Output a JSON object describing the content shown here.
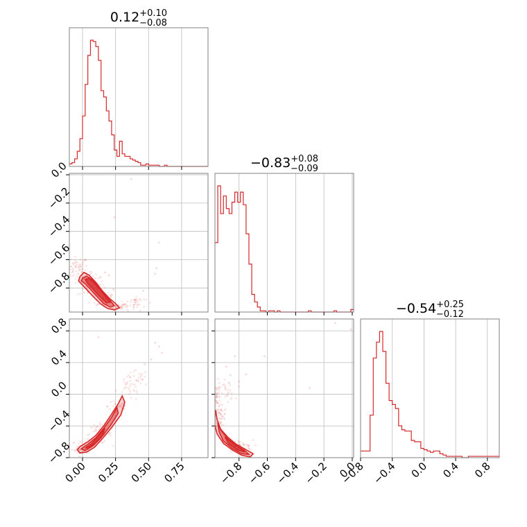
{
  "figure": {
    "title_values": [
      {
        "main": "0.12",
        "sup": "+0.10",
        "sub": "−0.08"
      },
      {
        "main": "−0.83",
        "sup": "+0.08",
        "sub": "−0.09"
      },
      {
        "main": "−0.54",
        "sup": "+0.25",
        "sub": "−0.12"
      }
    ],
    "color": "#d62728",
    "frame_color": "#808080",
    "grid": true
  },
  "chart_data": {
    "type": "corner",
    "parameters": [
      {
        "index": 0,
        "range": [
          -0.1,
          0.95
        ],
        "ticks": [
          "0.00",
          "0.25",
          "0.50",
          "0.75"
        ],
        "tick_values": [
          0.0,
          0.25,
          0.5,
          0.75
        ],
        "median": 0.12,
        "plus": 0.1,
        "minus": 0.08,
        "histogram": {
          "bin_edges": [
            -0.1,
            -0.08,
            -0.06,
            -0.04,
            -0.02,
            0.0,
            0.02,
            0.04,
            0.06,
            0.08,
            0.1,
            0.12,
            0.14,
            0.16,
            0.18,
            0.2,
            0.22,
            0.24,
            0.26,
            0.28,
            0.3,
            0.32,
            0.34,
            0.36,
            0.38,
            0.4,
            0.42,
            0.44,
            0.46,
            0.48,
            0.5,
            0.52,
            0.54,
            0.56,
            0.58,
            0.6,
            0.62,
            0.64,
            0.66,
            0.68,
            0.7,
            0.72,
            0.74,
            0.76,
            0.78,
            0.8,
            0.82,
            0.84,
            0.86,
            0.88,
            0.9,
            0.92,
            0.94,
            0.95
          ],
          "counts": [
            2,
            3,
            6,
            12,
            22,
            40,
            65,
            88,
            100,
            99,
            95,
            84,
            60,
            55,
            44,
            36,
            25,
            13,
            8,
            20,
            10,
            8,
            8,
            6,
            5,
            4,
            3,
            1,
            1,
            2,
            1,
            1,
            1,
            1,
            0,
            0,
            1,
            0,
            0,
            0,
            0,
            0,
            0,
            0,
            0,
            0,
            0,
            0,
            0,
            0,
            0,
            0,
            0
          ]
        }
      },
      {
        "index": 1,
        "range": [
          -0.97,
          0.01
        ],
        "ticks": [
          "−0.8",
          "−0.6",
          "−0.4",
          "−0.2",
          "0.0"
        ],
        "tick_values": [
          -0.8,
          -0.6,
          -0.4,
          -0.2,
          0.0
        ],
        "median": -0.83,
        "plus": 0.08,
        "minus": 0.09,
        "histogram": {
          "bin_edges": [
            -0.97,
            -0.95,
            -0.93,
            -0.91,
            -0.89,
            -0.87,
            -0.85,
            -0.83,
            -0.81,
            -0.79,
            -0.77,
            -0.75,
            -0.73,
            -0.71,
            -0.69,
            -0.67,
            -0.65,
            -0.63,
            -0.61,
            -0.59,
            -0.57,
            -0.55,
            -0.53,
            -0.51,
            -0.49,
            -0.47,
            -0.45,
            -0.43,
            -0.41,
            -0.39,
            -0.37,
            -0.35,
            -0.33,
            -0.31,
            -0.29,
            -0.27,
            -0.25,
            -0.23,
            -0.21,
            -0.19,
            -0.17,
            -0.15,
            -0.13,
            -0.11,
            -0.09,
            -0.07,
            -0.05,
            -0.03,
            -0.01,
            0.01
          ],
          "counts": [
            55,
            100,
            78,
            92,
            82,
            78,
            87,
            95,
            87,
            95,
            85,
            62,
            38,
            14,
            8,
            4,
            1,
            1,
            0,
            1,
            1,
            0,
            1,
            0,
            0,
            0,
            0,
            0,
            0,
            0,
            0,
            0,
            0,
            1,
            0,
            0,
            0,
            0,
            0,
            0,
            0,
            0,
            1,
            0,
            0,
            0,
            0,
            0,
            2
          ]
        }
      },
      {
        "index": 2,
        "range": [
          -0.8,
          0.95
        ],
        "x_ticks": [
          "−0.8",
          "−0.4",
          "0.0",
          "0.4",
          "0.8"
        ],
        "y_ticks": [
          "−0.8",
          "−0.4",
          "0.0",
          "0.4",
          "0.8"
        ],
        "tick_values": [
          -0.8,
          -0.4,
          0.0,
          0.4,
          0.8
        ],
        "median": -0.54,
        "plus": 0.25,
        "minus": 0.12,
        "histogram": {
          "bin_edges": [
            -0.8,
            -0.76,
            -0.72,
            -0.68,
            -0.64,
            -0.6,
            -0.56,
            -0.52,
            -0.48,
            -0.44,
            -0.4,
            -0.36,
            -0.32,
            -0.28,
            -0.24,
            -0.2,
            -0.16,
            -0.12,
            -0.08,
            -0.04,
            0.0,
            0.04,
            0.08,
            0.12,
            0.16,
            0.2,
            0.24,
            0.28,
            0.32,
            0.36,
            0.4,
            0.44,
            0.48,
            0.52,
            0.56,
            0.6,
            0.64,
            0.68,
            0.72,
            0.76,
            0.8,
            0.84,
            0.88,
            0.92,
            0.95
          ],
          "counts": [
            5,
            5,
            5,
            32,
            75,
            87,
            95,
            80,
            56,
            43,
            40,
            37,
            24,
            21,
            20,
            20,
            13,
            12,
            12,
            7,
            6,
            5,
            4,
            5,
            5,
            3,
            2,
            1,
            1,
            1,
            1,
            1,
            0,
            0,
            1,
            1,
            1,
            1,
            1,
            1,
            1,
            1,
            1,
            1
          ]
        }
      }
    ],
    "pairs": [
      {
        "x_param": 0,
        "y_param": 1,
        "contours": [
          [
            [
              -0.02,
              -0.72
            ],
            [
              0.01,
              -0.69
            ],
            [
              0.05,
              -0.71
            ],
            [
              0.1,
              -0.76
            ],
            [
              0.15,
              -0.82
            ],
            [
              0.2,
              -0.87
            ],
            [
              0.25,
              -0.91
            ],
            [
              0.28,
              -0.94
            ],
            [
              0.24,
              -0.955
            ],
            [
              0.19,
              -0.945
            ],
            [
              0.14,
              -0.915
            ],
            [
              0.09,
              -0.87
            ],
            [
              0.04,
              -0.82
            ],
            [
              0.0,
              -0.78
            ],
            [
              -0.03,
              -0.75
            ]
          ],
          [
            [
              0.0,
              -0.73
            ],
            [
              0.03,
              -0.715
            ],
            [
              0.07,
              -0.74
            ],
            [
              0.12,
              -0.79
            ],
            [
              0.17,
              -0.85
            ],
            [
              0.21,
              -0.89
            ],
            [
              0.24,
              -0.925
            ],
            [
              0.21,
              -0.935
            ],
            [
              0.16,
              -0.91
            ],
            [
              0.11,
              -0.86
            ],
            [
              0.06,
              -0.81
            ],
            [
              0.02,
              -0.77
            ],
            [
              -0.01,
              -0.75
            ]
          ],
          [
            [
              0.02,
              -0.74
            ],
            [
              0.05,
              -0.73
            ],
            [
              0.09,
              -0.765
            ],
            [
              0.14,
              -0.82
            ],
            [
              0.18,
              -0.865
            ],
            [
              0.21,
              -0.9
            ],
            [
              0.18,
              -0.905
            ],
            [
              0.13,
              -0.86
            ],
            [
              0.08,
              -0.81
            ],
            [
              0.04,
              -0.77
            ]
          ]
        ],
        "cloud": [
          {
            "center": [
              -0.04,
              -0.66
            ],
            "spread": [
              0.04,
              0.04
            ],
            "n": 60
          },
          {
            "center": [
              0.06,
              -0.77
            ],
            "spread": [
              0.05,
              0.05
            ],
            "n": 60
          },
          {
            "center": [
              0.16,
              -0.87
            ],
            "spread": [
              0.05,
              0.04
            ],
            "n": 50
          },
          {
            "center": [
              0.3,
              -0.93
            ],
            "spread": [
              0.05,
              0.015
            ],
            "n": 40
          },
          {
            "center": [
              0.4,
              -0.9
            ],
            "spread": [
              0.04,
              0.02
            ],
            "n": 25
          }
        ],
        "outliers": [
          [
            0.37,
            -0.03
          ],
          [
            0.24,
            -0.3
          ],
          [
            0.58,
            -0.48
          ],
          [
            0.56,
            -0.66
          ],
          [
            0.55,
            -0.7
          ],
          [
            0.17,
            -0.69
          ],
          [
            0.2,
            -0.71
          ],
          [
            0.46,
            -0.82
          ],
          [
            0.43,
            -0.88
          ]
        ]
      },
      {
        "x_param": 0,
        "y_param": 2,
        "contours": [
          [
            [
              -0.04,
              -0.7
            ],
            [
              -0.02,
              -0.66
            ],
            [
              0.04,
              -0.6
            ],
            [
              0.1,
              -0.52
            ],
            [
              0.16,
              -0.4
            ],
            [
              0.22,
              -0.25
            ],
            [
              0.27,
              -0.12
            ],
            [
              0.3,
              -0.02
            ],
            [
              0.32,
              -0.1
            ],
            [
              0.29,
              -0.26
            ],
            [
              0.22,
              -0.42
            ],
            [
              0.15,
              -0.56
            ],
            [
              0.09,
              -0.67
            ],
            [
              0.03,
              -0.73
            ],
            [
              -0.02,
              -0.74
            ]
          ],
          [
            [
              -0.01,
              -0.69
            ],
            [
              0.04,
              -0.63
            ],
            [
              0.1,
              -0.55
            ],
            [
              0.16,
              -0.43
            ],
            [
              0.22,
              -0.29
            ],
            [
              0.26,
              -0.17
            ],
            [
              0.27,
              -0.24
            ],
            [
              0.21,
              -0.4
            ],
            [
              0.14,
              -0.55
            ],
            [
              0.08,
              -0.65
            ],
            [
              0.02,
              -0.71
            ]
          ],
          [
            [
              0.02,
              -0.68
            ],
            [
              0.07,
              -0.62
            ],
            [
              0.12,
              -0.53
            ],
            [
              0.17,
              -0.43
            ],
            [
              0.15,
              -0.52
            ],
            [
              0.1,
              -0.61
            ],
            [
              0.05,
              -0.67
            ]
          ]
        ],
        "cloud": [
          {
            "center": [
              0.0,
              -0.68
            ],
            "spread": [
              0.04,
              0.05
            ],
            "n": 50
          },
          {
            "center": [
              0.12,
              -0.5
            ],
            "spread": [
              0.05,
              0.06
            ],
            "n": 50
          },
          {
            "center": [
              0.27,
              -0.15
            ],
            "spread": [
              0.04,
              0.06
            ],
            "n": 35
          },
          {
            "center": [
              0.36,
              0.07
            ],
            "spread": [
              0.05,
              0.08
            ],
            "n": 30
          },
          {
            "center": [
              0.42,
              0.2
            ],
            "spread": [
              0.04,
              0.05
            ],
            "n": 20
          }
        ],
        "outliers": [
          [
            0.12,
            0.72
          ],
          [
            0.55,
            0.65
          ],
          [
            0.58,
            0.6
          ],
          [
            0.6,
            0.52
          ],
          [
            0.47,
            0.38
          ],
          [
            0.52,
            0.44
          ]
        ]
      },
      {
        "x_param": 1,
        "y_param": 2,
        "contours": [
          [
            [
              -0.965,
              -0.2
            ],
            [
              -0.955,
              -0.32
            ],
            [
              -0.93,
              -0.44
            ],
            [
              -0.88,
              -0.54
            ],
            [
              -0.82,
              -0.63
            ],
            [
              -0.75,
              -0.7
            ],
            [
              -0.7,
              -0.75
            ],
            [
              -0.72,
              -0.79
            ],
            [
              -0.78,
              -0.77
            ],
            [
              -0.85,
              -0.7
            ],
            [
              -0.91,
              -0.62
            ],
            [
              -0.955,
              -0.5
            ],
            [
              -0.975,
              -0.36
            ]
          ],
          [
            [
              -0.95,
              -0.36
            ],
            [
              -0.93,
              -0.45
            ],
            [
              -0.88,
              -0.56
            ],
            [
              -0.82,
              -0.645
            ],
            [
              -0.76,
              -0.71
            ],
            [
              -0.73,
              -0.76
            ],
            [
              -0.78,
              -0.75
            ],
            [
              -0.85,
              -0.68
            ],
            [
              -0.91,
              -0.59
            ],
            [
              -0.94,
              -0.48
            ]
          ],
          [
            [
              -0.9,
              -0.54
            ],
            [
              -0.85,
              -0.61
            ],
            [
              -0.79,
              -0.68
            ],
            [
              -0.76,
              -0.73
            ],
            [
              -0.81,
              -0.7
            ],
            [
              -0.87,
              -0.63
            ]
          ]
        ],
        "cloud": [
          {
            "center": [
              -0.955,
              -0.05
            ],
            "spread": [
              0.015,
              0.1
            ],
            "n": 55
          },
          {
            "center": [
              -0.93,
              -0.28
            ],
            "spread": [
              0.02,
              0.06
            ],
            "n": 40
          },
          {
            "center": [
              -0.88,
              0.05
            ],
            "spread": [
              0.025,
              0.06
            ],
            "n": 25
          },
          {
            "center": [
              -0.8,
              -0.66
            ],
            "spread": [
              0.05,
              0.04
            ],
            "n": 45
          }
        ],
        "outliers": [
          [
            -0.83,
            0.48
          ],
          [
            -0.89,
            0.35
          ],
          [
            -0.86,
            0.24
          ],
          [
            -0.8,
            0.16
          ],
          [
            -0.75,
            0.25
          ],
          [
            -0.62,
            0.48
          ],
          [
            -0.3,
            0.08
          ],
          [
            -0.12,
            0.9
          ],
          [
            -0.01,
            0.82
          ],
          [
            -0.5,
            0.95
          ]
        ]
      }
    ]
  }
}
